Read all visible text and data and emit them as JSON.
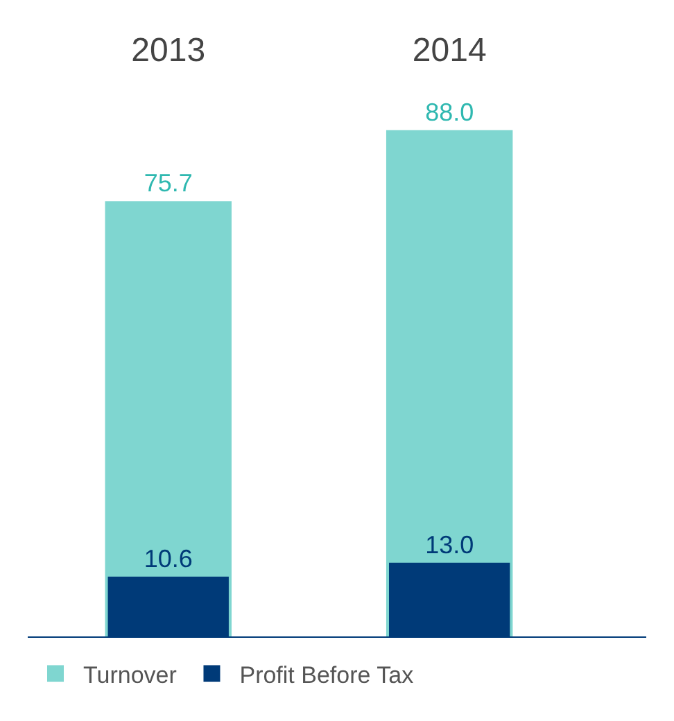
{
  "chart_data": {
    "type": "bar",
    "categories": [
      "2013",
      "2014"
    ],
    "series": [
      {
        "name": "Turnover",
        "color": "#7fd6d0",
        "values": [
          75.7,
          88.0
        ],
        "value_labels": [
          "75.7",
          "88.0"
        ]
      },
      {
        "name": "Profit Before Tax",
        "color": "#003a78",
        "values": [
          10.6,
          13.0
        ],
        "value_labels": [
          "10.6",
          "13.0"
        ]
      }
    ],
    "legend": "bottom"
  }
}
